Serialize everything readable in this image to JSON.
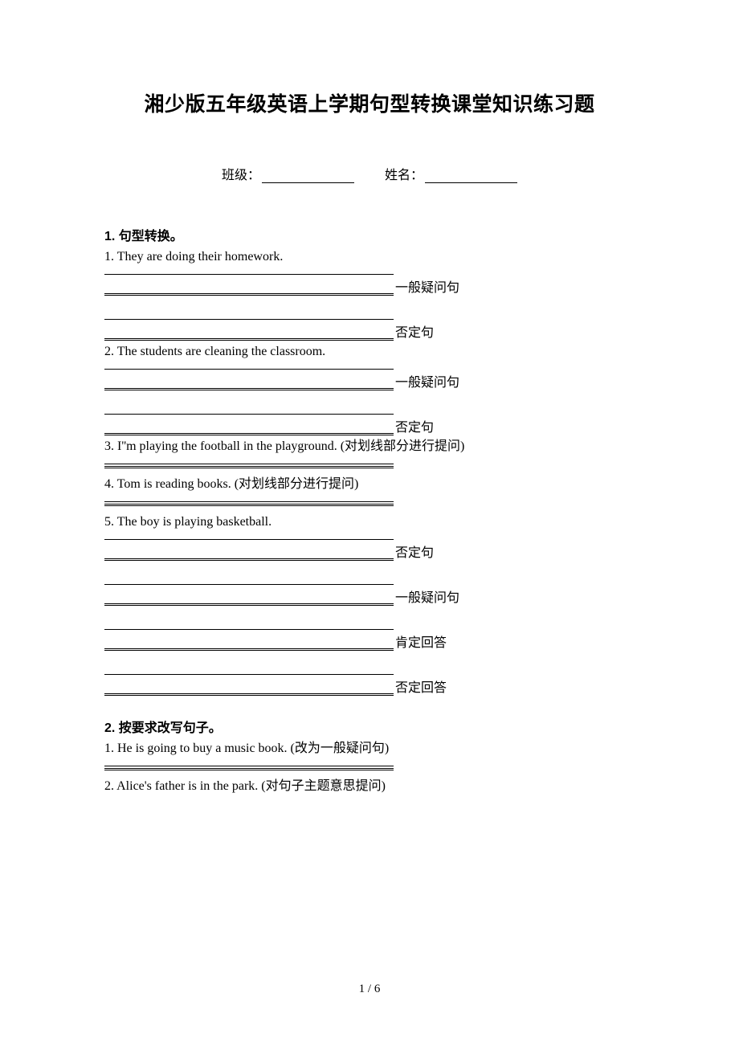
{
  "title": "湘少版五年级英语上学期句型转换课堂知识练习题",
  "form": {
    "class_label": "班级：",
    "name_label": "姓名："
  },
  "section1": {
    "heading": "1.  句型转换。",
    "items": [
      {
        "text": "1. They are doing their homework.",
        "answers": [
          {
            "type": "double-label",
            "label": "一般疑问句"
          },
          {
            "type": "gap"
          },
          {
            "type": "double-label",
            "label": "否定句"
          }
        ]
      },
      {
        "text": "2. The students are cleaning the classroom.",
        "answers": [
          {
            "type": "double-label",
            "label": "一般疑问句"
          },
          {
            "type": "gap"
          },
          {
            "type": "double-label",
            "label": "否定句"
          }
        ]
      },
      {
        "text_en": "3. I''m playing the football in the playground. ",
        "text_cn": "(对划线部分进行提问)",
        "answers": [
          {
            "type": "double"
          }
        ]
      },
      {
        "text_en": "4. Tom is reading books. ",
        "text_cn": "(对划线部分进行提问)",
        "answers": [
          {
            "type": "double"
          }
        ]
      },
      {
        "text": "5. The boy is playing basketball.",
        "answers": [
          {
            "type": "double-label",
            "label": "否定句"
          },
          {
            "type": "gap"
          },
          {
            "type": "double-label",
            "label": "一般疑问句"
          },
          {
            "type": "gap"
          },
          {
            "type": "double-label",
            "label": "肯定回答"
          },
          {
            "type": "gap"
          },
          {
            "type": "double-label",
            "label": "否定回答"
          }
        ]
      }
    ]
  },
  "section2": {
    "heading": "2.  按要求改写句子。",
    "items": [
      {
        "text_en": "1. He is going to buy a music book. ",
        "text_cn": "(改为一般疑问句)",
        "answers": [
          {
            "type": "double"
          }
        ]
      },
      {
        "text_en": "2. Alice's father is in the park. ",
        "text_cn": "(对句子主题意思提问)",
        "answers": []
      }
    ]
  },
  "page_number": "1 / 6",
  "labels": {
    "general_question": "一般疑问句",
    "negative": "否定句",
    "affirmative_answer": "肯定回答",
    "negative_answer": "否定回答"
  }
}
